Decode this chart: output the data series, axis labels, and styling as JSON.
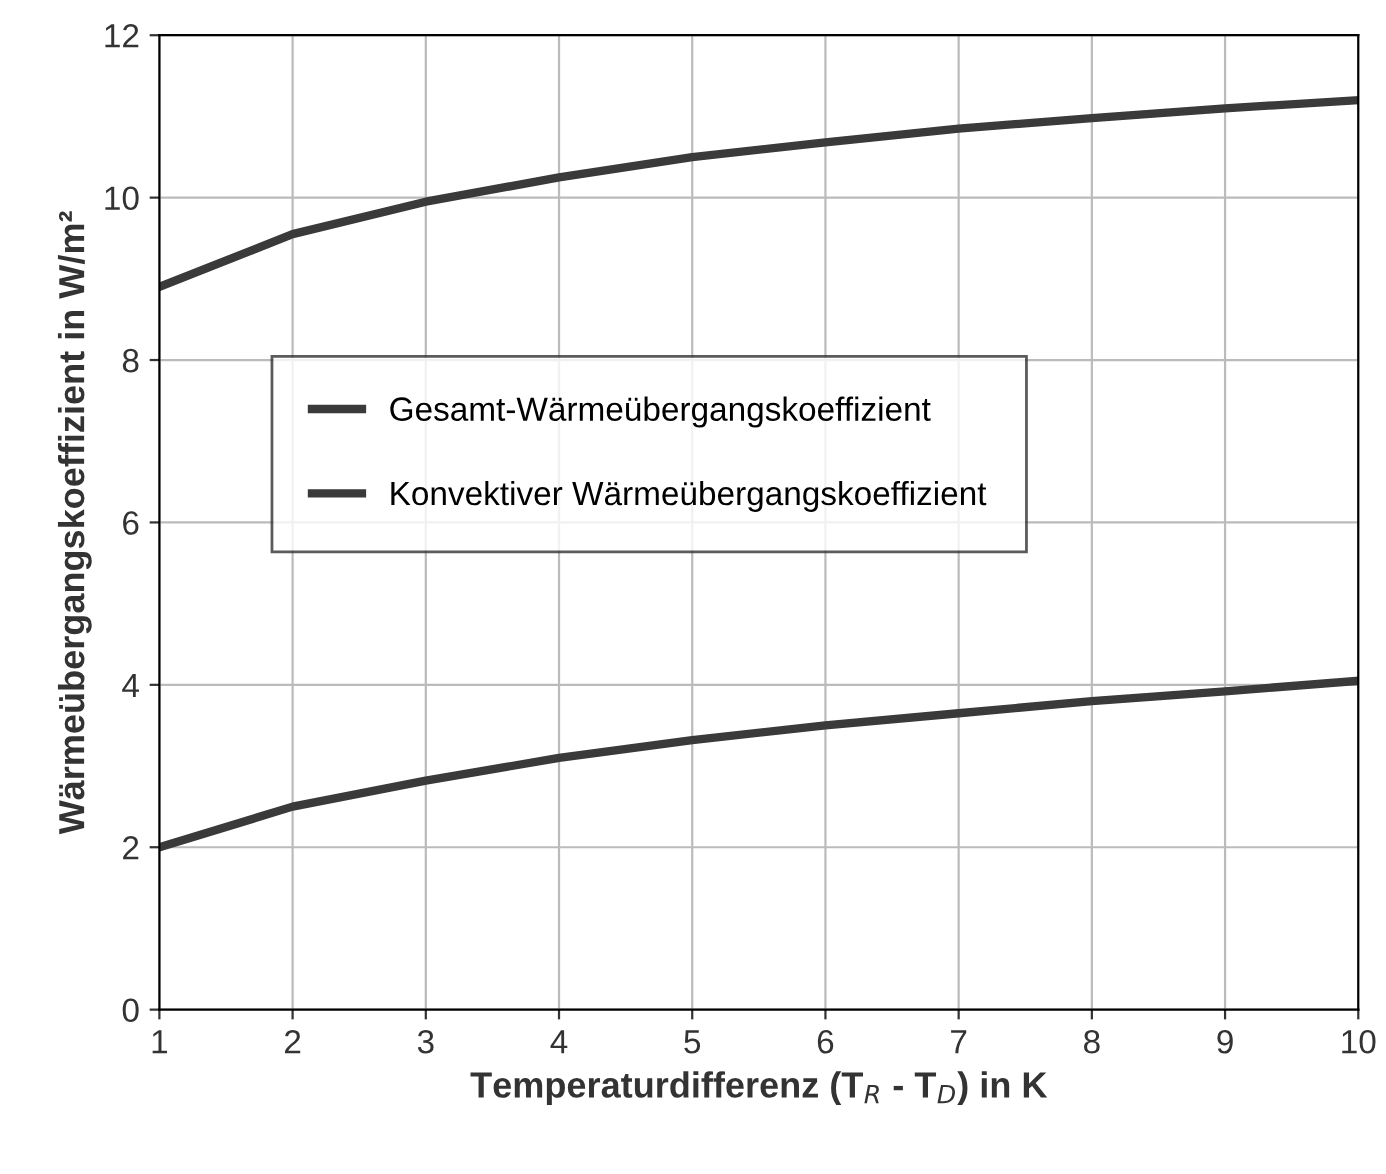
{
  "chart_data": {
    "type": "line",
    "xlabel": "Temperaturdifferenz (T$_{R}$ - T$_{D}$) in K",
    "ylabel": "Wärmeübergangskoeffizient in W/m²",
    "x": [
      1,
      2,
      3,
      4,
      5,
      6,
      7,
      8,
      9,
      10
    ],
    "series": [
      {
        "name": "Gesamt-Wärmeübergangskoeffizient",
        "color": "#3a3a3a",
        "values": [
          8.9,
          9.55,
          9.95,
          10.25,
          10.5,
          10.68,
          10.85,
          10.98,
          11.1,
          11.2
        ]
      },
      {
        "name": "Konvektiver Wärmeübergangskoeffizient",
        "color": "#3a3a3a",
        "values": [
          2.0,
          2.5,
          2.82,
          3.1,
          3.32,
          3.5,
          3.65,
          3.8,
          3.92,
          4.05
        ]
      }
    ],
    "xlim": [
      1,
      10
    ],
    "xticks": [
      1,
      2,
      3,
      4,
      5,
      6,
      7,
      8,
      9,
      10
    ],
    "ylim": [
      0,
      12
    ],
    "yticks": [
      0,
      2,
      4,
      6,
      8,
      10,
      12
    ],
    "grid": true,
    "legend": "center left",
    "marker": "none",
    "line_style": "solid"
  }
}
